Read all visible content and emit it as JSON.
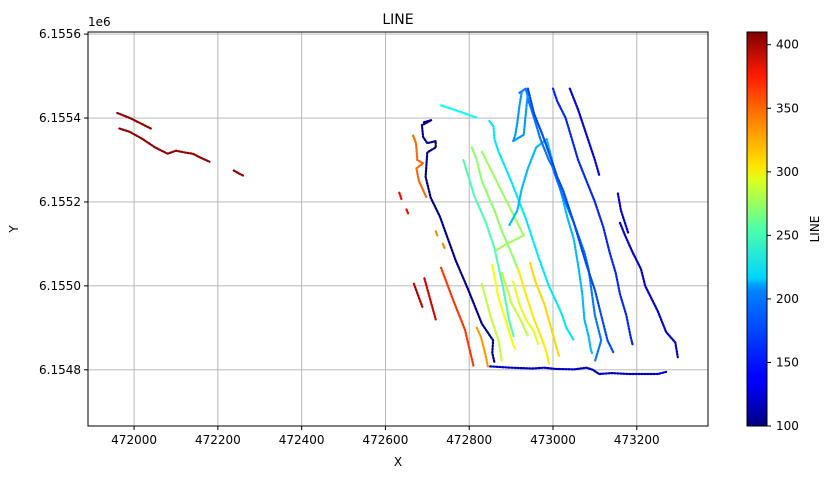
{
  "chart_data": {
    "type": "scatter",
    "title": "LINE",
    "xlabel": "X",
    "ylabel": "Y",
    "y_offset_label": "1e6",
    "xlim": [
      471890,
      473370
    ],
    "ylim": [
      6154666,
      6155605
    ],
    "x_ticks": [
      472000,
      472200,
      472400,
      472600,
      472800,
      473000,
      473200
    ],
    "x_tick_labels": [
      "472000",
      "472200",
      "472400",
      "472600",
      "472800",
      "473000",
      "473200"
    ],
    "y_ticks": [
      6154800,
      6155000,
      6155200,
      6155400,
      6155600
    ],
    "y_tick_labels": [
      "6.1548",
      "6.1550",
      "6.1552",
      "6.1554",
      "6.1556"
    ],
    "grid": true,
    "colorbar": {
      "label": "LINE",
      "colormap": "jet",
      "range": [
        100,
        410
      ],
      "ticks": [
        100,
        150,
        200,
        250,
        300,
        350,
        400
      ],
      "tick_labels": [
        "100",
        "150",
        "200",
        "250",
        "300",
        "350",
        "400"
      ]
    },
    "series": [
      {
        "line": 405,
        "points": [
          [
            471960,
            6155412
          ],
          [
            471990,
            6155400
          ],
          [
            472010,
            6155390
          ],
          [
            472040,
            6155375
          ]
        ]
      },
      {
        "line": 405,
        "points": [
          [
            471965,
            6155375
          ],
          [
            471990,
            6155367
          ],
          [
            472020,
            6155350
          ],
          [
            472050,
            6155330
          ],
          [
            472080,
            6155315
          ],
          [
            472100,
            6155322
          ],
          [
            472120,
            6155318
          ],
          [
            472140,
            6155315
          ],
          [
            472160,
            6155305
          ],
          [
            472180,
            6155296
          ]
        ]
      },
      {
        "line": 405,
        "points": [
          [
            472238,
            6155275
          ],
          [
            472250,
            6155268
          ],
          [
            472262,
            6155262
          ]
        ]
      },
      {
        "line": 372,
        "points": [
          [
            472633,
            6155222
          ],
          [
            472638,
            6155207
          ]
        ]
      },
      {
        "line": 372,
        "points": [
          [
            472650,
            6155182
          ],
          [
            472654,
            6155173
          ]
        ]
      },
      {
        "line": 340,
        "points": [
          [
            472666,
            6155358
          ],
          [
            472673,
            6155340
          ],
          [
            472676,
            6155300
          ],
          [
            472690,
            6155292
          ],
          [
            472674,
            6155280
          ],
          [
            472680,
            6155250
          ],
          [
            472698,
            6155210
          ]
        ]
      },
      {
        "line": 330,
        "points": [
          [
            472720,
            6155130
          ],
          [
            472724,
            6155120
          ]
        ]
      },
      {
        "line": 330,
        "points": [
          [
            472737,
            6155100
          ],
          [
            472742,
            6155088
          ]
        ]
      },
      {
        "line": 395,
        "points": [
          [
            472668,
            6155005
          ],
          [
            472688,
            6154950
          ]
        ]
      },
      {
        "line": 385,
        "points": [
          [
            472693,
            6155018
          ],
          [
            472720,
            6154920
          ]
        ]
      },
      {
        "line": 355,
        "points": [
          [
            472733,
            6155043
          ],
          [
            472760,
            6154970
          ],
          [
            472790,
            6154895
          ],
          [
            472810,
            6154810
          ]
        ]
      },
      {
        "line": 325,
        "points": [
          [
            472818,
            6154900
          ],
          [
            472828,
            6154878
          ],
          [
            472838,
            6154840
          ],
          [
            472845,
            6154805
          ]
        ]
      },
      {
        "line": 105,
        "points": [
          [
            472692,
            6155390
          ],
          [
            472710,
            6155395
          ],
          [
            472687,
            6155383
          ],
          [
            472690,
            6155355
          ],
          [
            472700,
            6155340
          ],
          [
            472720,
            6155345
          ],
          [
            472720,
            6155330
          ],
          [
            472700,
            6155318
          ],
          [
            472696,
            6155260
          ],
          [
            472708,
            6155210
          ],
          [
            472730,
            6155165
          ],
          [
            472768,
            6155060
          ],
          [
            472798,
            6154990
          ],
          [
            472830,
            6154910
          ],
          [
            472857,
            6154870
          ],
          [
            472855,
            6154840
          ],
          [
            472860,
            6154818
          ]
        ]
      },
      {
        "line": 220,
        "points": [
          [
            472733,
            6155430
          ],
          [
            472770,
            6155418
          ],
          [
            472820,
            6155400
          ]
        ]
      },
      {
        "line": 210,
        "points": [
          [
            472848,
            6155393
          ],
          [
            472858,
            6155380
          ],
          [
            472860,
            6155350
          ],
          [
            472870,
            6155320
          ],
          [
            472900,
            6155250
          ],
          [
            472935,
            6155160
          ],
          [
            472965,
            6155070
          ],
          [
            472990,
            6155000
          ],
          [
            473020,
            6154935
          ],
          [
            473032,
            6154900
          ],
          [
            473050,
            6154870
          ]
        ]
      },
      {
        "line": 240,
        "points": [
          [
            472786,
            6155300
          ],
          [
            472812,
            6155215
          ],
          [
            472840,
            6155150
          ],
          [
            472860,
            6155090
          ],
          [
            472880,
            6155000
          ],
          [
            472895,
            6154920
          ],
          [
            472906,
            6154880
          ]
        ]
      },
      {
        "line": 260,
        "points": [
          [
            472806,
            6155330
          ],
          [
            472818,
            6155300
          ],
          [
            472830,
            6155250
          ],
          [
            472860,
            6155180
          ],
          [
            472878,
            6155130
          ],
          [
            472900,
            6155080
          ],
          [
            472920,
            6155030
          ]
        ]
      },
      {
        "line": 265,
        "points": [
          [
            472830,
            6155320
          ],
          [
            472850,
            6155280
          ],
          [
            472870,
            6155240
          ],
          [
            472900,
            6155180
          ],
          [
            472920,
            6155140
          ],
          [
            472930,
            6155120
          ],
          [
            472890,
            6155100
          ],
          [
            472865,
            6155085
          ]
        ]
      },
      {
        "line": 275,
        "points": [
          [
            472830,
            6155005
          ],
          [
            472850,
            6154930
          ],
          [
            472870,
            6154870
          ],
          [
            472878,
            6154820
          ]
        ]
      },
      {
        "line": 290,
        "points": [
          [
            472855,
            6155050
          ],
          [
            472868,
            6154980
          ],
          [
            472880,
            6154940
          ],
          [
            472892,
            6154900
          ],
          [
            472905,
            6154860
          ],
          [
            472910,
            6154850
          ]
        ]
      },
      {
        "line": 275,
        "points": [
          [
            472878,
            6155030
          ],
          [
            472895,
            6154980
          ],
          [
            472900,
            6154960
          ],
          [
            472922,
            6154920
          ],
          [
            472940,
            6154880
          ]
        ]
      },
      {
        "line": 285,
        "points": [
          [
            472905,
            6155010
          ],
          [
            472920,
            6154955
          ],
          [
            472935,
            6154920
          ],
          [
            472955,
            6154890
          ],
          [
            472965,
            6154860
          ]
        ]
      },
      {
        "line": 300,
        "points": [
          [
            472917,
            6155040
          ],
          [
            472935,
            6154980
          ],
          [
            472955,
            6154920
          ],
          [
            472975,
            6154870
          ],
          [
            472985,
            6154840
          ],
          [
            472990,
            6154815
          ]
        ]
      },
      {
        "line": 305,
        "points": [
          [
            472945,
            6155055
          ],
          [
            472958,
            6155010
          ],
          [
            472980,
            6154955
          ],
          [
            472998,
            6154890
          ],
          [
            473015,
            6154830
          ]
        ]
      },
      {
        "line": 195,
        "points": [
          [
            472896,
            6155145
          ],
          [
            472915,
            6155180
          ],
          [
            472925,
            6155230
          ],
          [
            472940,
            6155280
          ],
          [
            472960,
            6155330
          ],
          [
            472985,
            6155350
          ],
          [
            473000,
            6155290
          ],
          [
            473020,
            6155220
          ],
          [
            473035,
            6155160
          ],
          [
            473050,
            6155110
          ],
          [
            473060,
            6155050
          ],
          [
            473070,
            6154980
          ],
          [
            473075,
            6154920
          ],
          [
            473085,
            6154880
          ],
          [
            473090,
            6154850
          ],
          [
            473093,
            6154840
          ]
        ]
      },
      {
        "line": 175,
        "points": [
          [
            472920,
            6155460
          ],
          [
            472935,
            6155470
          ],
          [
            472942,
            6155440
          ],
          [
            472955,
            6155400
          ],
          [
            472970,
            6155350
          ],
          [
            472990,
            6155300
          ],
          [
            472998,
            6155285
          ],
          [
            473010,
            6155250
          ],
          [
            473025,
            6155210
          ],
          [
            473050,
            6155150
          ],
          [
            473075,
            6155080
          ],
          [
            473085,
            6155040
          ],
          [
            473093,
            6154980
          ],
          [
            473100,
            6154930
          ],
          [
            473115,
            6154870
          ],
          [
            473100,
            6154820
          ]
        ]
      },
      {
        "line": 185,
        "points": [
          [
            472925,
            6155460
          ],
          [
            472920,
            6155430
          ],
          [
            472915,
            6155390
          ],
          [
            472910,
            6155360
          ],
          [
            472905,
            6155345
          ],
          [
            472930,
            6155360
          ],
          [
            472935,
            6155410
          ],
          [
            472940,
            6155460
          ]
        ]
      },
      {
        "line": 160,
        "points": [
          [
            472940,
            6155470
          ],
          [
            472955,
            6155410
          ],
          [
            472975,
            6155360
          ],
          [
            473000,
            6155290
          ],
          [
            473010,
            6155260
          ],
          [
            473025,
            6155225
          ],
          [
            473050,
            6155150
          ],
          [
            473065,
            6155100
          ],
          [
            473080,
            6155050
          ],
          [
            473100,
            6154990
          ],
          [
            473115,
            6154930
          ],
          [
            473130,
            6154870
          ],
          [
            473145,
            6154840
          ]
        ]
      },
      {
        "line": 150,
        "points": [
          [
            473000,
            6155470
          ],
          [
            473010,
            6155440
          ],
          [
            473030,
            6155400
          ],
          [
            473045,
            6155350
          ],
          [
            473060,
            6155300
          ],
          [
            473080,
            6155250
          ],
          [
            473100,
            6155200
          ],
          [
            473120,
            6155140
          ],
          [
            473135,
            6155080
          ],
          [
            473150,
            6155030
          ],
          [
            473160,
            6154980
          ],
          [
            473175,
            6154930
          ],
          [
            473185,
            6154880
          ],
          [
            473190,
            6154860
          ]
        ]
      },
      {
        "line": 130,
        "points": [
          [
            473040,
            6155470
          ],
          [
            473060,
            6155420
          ],
          [
            473080,
            6155360
          ],
          [
            473100,
            6155300
          ],
          [
            473110,
            6155265
          ]
        ]
      },
      {
        "line": 125,
        "points": [
          [
            473155,
            6155220
          ],
          [
            473162,
            6155180
          ],
          [
            473175,
            6155140
          ],
          [
            473180,
            6155125
          ]
        ]
      },
      {
        "line": 125,
        "points": [
          [
            473160,
            6155150
          ],
          [
            473172,
            6155120
          ],
          [
            473190,
            6155080
          ],
          [
            473210,
            6155040
          ],
          [
            473220,
            6155000
          ],
          [
            473250,
            6154940
          ],
          [
            473270,
            6154890
          ],
          [
            473292,
            6154865
          ],
          [
            473298,
            6154830
          ]
        ]
      },
      {
        "line": 120,
        "points": [
          [
            472850,
            6154808
          ],
          [
            472900,
            6154805
          ],
          [
            472950,
            6154803
          ],
          [
            472980,
            6154805
          ],
          [
            473005,
            6154802
          ],
          [
            473050,
            6154801
          ],
          [
            473080,
            6154805
          ],
          [
            473095,
            6154800
          ],
          [
            473110,
            6154790
          ],
          [
            473140,
            6154792
          ],
          [
            473180,
            6154790
          ],
          [
            473210,
            6154790
          ],
          [
            473250,
            6154790
          ],
          [
            473270,
            6154795
          ]
        ]
      }
    ]
  }
}
